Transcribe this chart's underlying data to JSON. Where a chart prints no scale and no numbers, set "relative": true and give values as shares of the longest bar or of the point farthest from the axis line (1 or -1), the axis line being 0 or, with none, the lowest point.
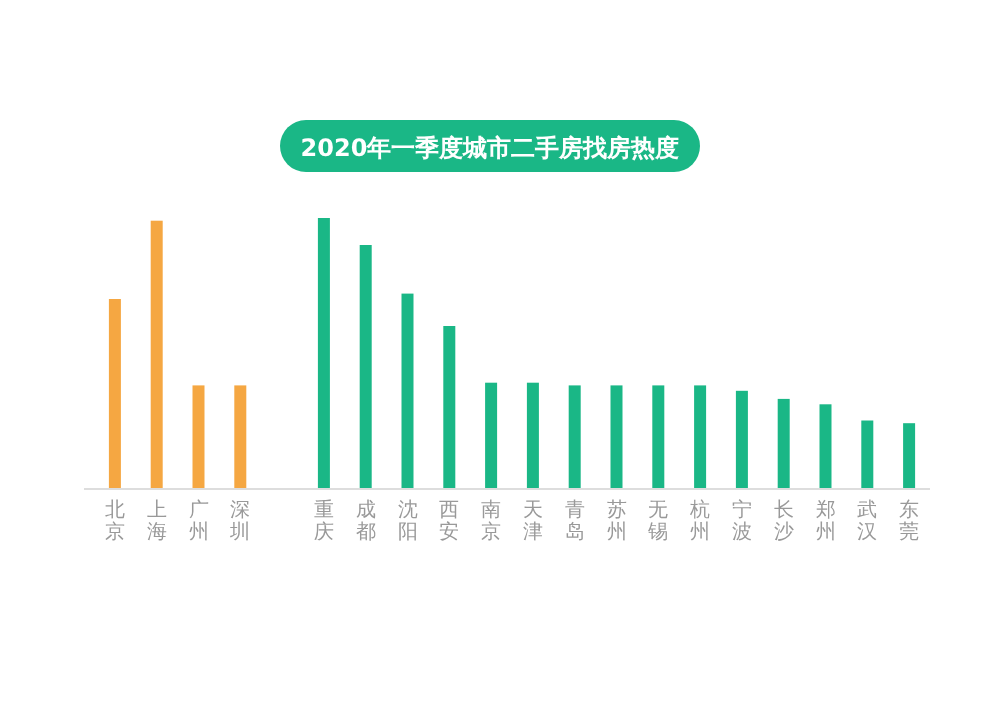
{
  "chart_data": {
    "type": "bar",
    "title": "2020年一季度城市二手房找房热度",
    "relative": true,
    "categories": [
      "北京",
      "上海",
      "广州",
      "深圳",
      null,
      "重庆",
      "成都",
      "沈阳",
      "西安",
      "南京",
      "天津",
      "青岛",
      "苏州",
      "无锡",
      "杭州",
      "宁波",
      "长沙",
      "郑州",
      "武汉",
      "东莞"
    ],
    "values": [
      0.7,
      0.99,
      0.38,
      0.38,
      null,
      1,
      0.9,
      0.72,
      0.6,
      0.39,
      0.39,
      0.38,
      0.38,
      0.38,
      0.38,
      0.36,
      0.33,
      0.31,
      0.25,
      0.24
    ],
    "colors": [
      "#f5a742",
      "#f5a742",
      "#f5a742",
      "#f5a742",
      null,
      "#1ab786",
      "#1ab786",
      "#1ab786",
      "#1ab786",
      "#1ab786",
      "#1ab786",
      "#1ab786",
      "#1ab786",
      "#1ab786",
      "#1ab786",
      "#1ab786",
      "#1ab786",
      "#1ab786",
      "#1ab786",
      "#1ab786"
    ],
    "grid": false
  }
}
